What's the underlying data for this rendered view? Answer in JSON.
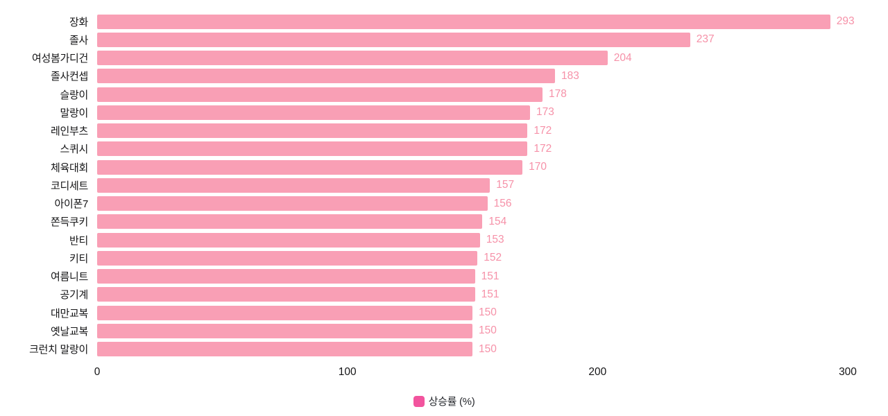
{
  "chart_data": {
    "type": "bar",
    "orientation": "horizontal",
    "title": "",
    "xlabel": "",
    "ylabel": "",
    "categories": [
      "장화",
      "졸사",
      "여성봄가디건",
      "졸사컨셉",
      "슬랑이",
      "말랑이",
      "레인부츠",
      "스퀴시",
      "체육대회",
      "코디세트",
      "아이폰7",
      "쫀득쿠키",
      "반티",
      "키티",
      "여름니트",
      "공기계",
      "대만교복",
      "옛날교복",
      "크런치 말랑이"
    ],
    "values": [
      293,
      237,
      204,
      183,
      178,
      173,
      172,
      172,
      170,
      157,
      156,
      154,
      153,
      152,
      151,
      151,
      150,
      150,
      150
    ],
    "xlim": [
      0,
      300
    ],
    "x_ticks": [
      0,
      100,
      200,
      300
    ],
    "grid": false,
    "value_labels": true,
    "legend": {
      "label": "상승률 (%)",
      "position": "bottom"
    },
    "colors": {
      "bar": "#F99FB5",
      "value_label": "#F691A8",
      "legend_swatch": "#F2549E",
      "axis_text": "#141416"
    }
  }
}
